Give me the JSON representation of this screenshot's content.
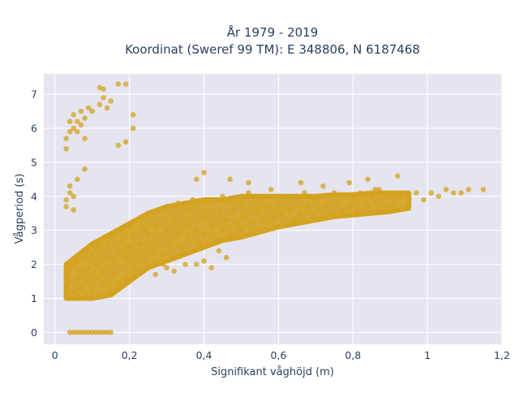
{
  "chart_data": {
    "type": "scatter",
    "title_lines": [
      "År 1979 - 2019",
      "Koordinat (Sweref 99 TM): E 348806, N 6187468"
    ],
    "xlabel": "Signifikant våghöjd (m)",
    "ylabel": "Vågperiod (s)",
    "xlim": [
      -0.03,
      1.2
    ],
    "ylim": [
      -0.35,
      7.6
    ],
    "grid": true,
    "legend": "none",
    "x_ticks": [
      {
        "value": 0,
        "label": "0"
      },
      {
        "value": 0.2,
        "label": "0,2"
      },
      {
        "value": 0.4,
        "label": "0,4"
      },
      {
        "value": 0.6,
        "label": "0,6"
      },
      {
        "value": 0.8,
        "label": "0,8"
      },
      {
        "value": 1.0,
        "label": "1"
      },
      {
        "value": 1.2,
        "label": "1,2"
      }
    ],
    "y_ticks": [
      {
        "value": 0,
        "label": "0"
      },
      {
        "value": 1,
        "label": "1"
      },
      {
        "value": 2,
        "label": "2"
      },
      {
        "value": 3,
        "label": "3"
      },
      {
        "value": 4,
        "label": "4"
      },
      {
        "value": 5,
        "label": "5"
      },
      {
        "value": 6,
        "label": "6"
      },
      {
        "value": 7,
        "label": "7"
      }
    ],
    "marker_color": "#d4a21f",
    "plot_bg": "#e5e5f0",
    "points": [
      [
        0.04,
        0
      ],
      [
        0.05,
        0
      ],
      [
        0.06,
        0
      ],
      [
        0.07,
        0
      ],
      [
        0.08,
        0
      ],
      [
        0.09,
        0
      ],
      [
        0.1,
        0
      ],
      [
        0.11,
        0
      ],
      [
        0.12,
        0
      ],
      [
        0.13,
        0
      ],
      [
        0.14,
        0
      ],
      [
        0.15,
        0
      ],
      [
        0.03,
        3.7
      ],
      [
        0.03,
        3.9
      ],
      [
        0.04,
        4.1
      ],
      [
        0.04,
        4.3
      ],
      [
        0.05,
        4.0
      ],
      [
        0.05,
        3.6
      ],
      [
        0.06,
        4.5
      ],
      [
        0.08,
        4.8
      ],
      [
        0.03,
        5.4
      ],
      [
        0.03,
        5.7
      ],
      [
        0.04,
        5.9
      ],
      [
        0.04,
        6.2
      ],
      [
        0.05,
        6.0
      ],
      [
        0.05,
        6.4
      ],
      [
        0.06,
        6.2
      ],
      [
        0.06,
        5.9
      ],
      [
        0.07,
        6.5
      ],
      [
        0.07,
        6.1
      ],
      [
        0.08,
        6.3
      ],
      [
        0.09,
        6.6
      ],
      [
        0.1,
        6.5
      ],
      [
        0.12,
        6.7
      ],
      [
        0.13,
        6.9
      ],
      [
        0.14,
        6.6
      ],
      [
        0.15,
        6.8
      ],
      [
        0.08,
        5.7
      ],
      [
        0.12,
        7.2
      ],
      [
        0.13,
        7.15
      ],
      [
        0.17,
        7.3
      ],
      [
        0.19,
        7.3
      ],
      [
        0.21,
        6.4
      ],
      [
        0.21,
        6.0
      ],
      [
        0.19,
        5.6
      ],
      [
        0.17,
        5.5
      ],
      [
        0.03,
        1.3
      ],
      [
        0.03,
        1.7
      ],
      [
        0.04,
        1.9
      ],
      [
        0.04,
        1.5
      ],
      [
        0.05,
        2.0
      ],
      [
        0.05,
        1.2
      ],
      [
        0.06,
        1.1
      ],
      [
        0.06,
        1.6
      ],
      [
        0.06,
        2.1
      ],
      [
        0.07,
        1.8
      ],
      [
        0.07,
        1.3
      ],
      [
        0.08,
        2.2
      ],
      [
        0.08,
        1.1
      ],
      [
        0.09,
        1.5
      ],
      [
        0.09,
        1.9
      ],
      [
        0.1,
        2.3
      ],
      [
        0.1,
        1.2
      ],
      [
        0.11,
        1.6
      ],
      [
        0.11,
        2.0
      ],
      [
        0.12,
        2.5
      ],
      [
        0.12,
        1.1
      ],
      [
        0.13,
        1.4
      ],
      [
        0.13,
        1.8
      ],
      [
        0.14,
        2.2
      ],
      [
        0.14,
        2.6
      ],
      [
        0.15,
        1.2
      ],
      [
        0.15,
        2.8
      ],
      [
        0.16,
        1.7
      ],
      [
        0.16,
        2.1
      ],
      [
        0.17,
        2.4
      ],
      [
        0.17,
        1.4
      ],
      [
        0.18,
        2.7
      ],
      [
        0.18,
        3.0
      ],
      [
        0.19,
        2.2
      ],
      [
        0.19,
        1.6
      ],
      [
        0.2,
        2.5
      ],
      [
        0.2,
        3.1
      ],
      [
        0.21,
        2.0
      ],
      [
        0.21,
        2.8
      ],
      [
        0.22,
        3.3
      ],
      [
        0.22,
        1.8
      ],
      [
        0.23,
        2.6
      ],
      [
        0.24,
        3.0
      ],
      [
        0.24,
        2.2
      ],
      [
        0.25,
        2.9
      ],
      [
        0.25,
        3.5
      ],
      [
        0.26,
        2.4
      ],
      [
        0.27,
        3.1
      ],
      [
        0.28,
        2.7
      ],
      [
        0.28,
        3.6
      ],
      [
        0.29,
        2.3
      ],
      [
        0.3,
        3.0
      ],
      [
        0.3,
        3.7
      ],
      [
        0.31,
        2.6
      ],
      [
        0.32,
        3.3
      ],
      [
        0.33,
        2.9
      ],
      [
        0.33,
        3.8
      ],
      [
        0.34,
        2.5
      ],
      [
        0.35,
        3.2
      ],
      [
        0.36,
        2.8
      ],
      [
        0.36,
        3.6
      ],
      [
        0.37,
        3.9
      ],
      [
        0.38,
        3.0
      ],
      [
        0.39,
        2.6
      ],
      [
        0.4,
        3.4
      ],
      [
        0.4,
        2.9
      ],
      [
        0.41,
        3.8
      ],
      [
        0.42,
        3.1
      ],
      [
        0.43,
        2.7
      ],
      [
        0.44,
        3.5
      ],
      [
        0.45,
        3.0
      ],
      [
        0.45,
        4.0
      ],
      [
        0.46,
        3.3
      ],
      [
        0.47,
        2.9
      ],
      [
        0.48,
        3.6
      ],
      [
        0.49,
        3.2
      ],
      [
        0.5,
        3.8
      ],
      [
        0.5,
        3.0
      ],
      [
        0.51,
        3.4
      ],
      [
        0.52,
        4.1
      ],
      [
        0.53,
        3.2
      ],
      [
        0.54,
        3.6
      ],
      [
        0.55,
        3.9
      ],
      [
        0.56,
        3.3
      ],
      [
        0.57,
        3.7
      ],
      [
        0.58,
        4.2
      ],
      [
        0.59,
        3.4
      ],
      [
        0.6,
        3.8
      ],
      [
        0.61,
        3.5
      ],
      [
        0.62,
        4.0
      ],
      [
        0.63,
        3.6
      ],
      [
        0.64,
        3.3
      ],
      [
        0.65,
        3.9
      ],
      [
        0.66,
        3.5
      ],
      [
        0.67,
        4.1
      ],
      [
        0.68,
        3.7
      ],
      [
        0.69,
        3.4
      ],
      [
        0.7,
        3.9
      ],
      [
        0.71,
        3.6
      ],
      [
        0.72,
        4.0
      ],
      [
        0.73,
        3.7
      ],
      [
        0.74,
        3.5
      ],
      [
        0.75,
        4.1
      ],
      [
        0.76,
        3.8
      ],
      [
        0.77,
        3.6
      ],
      [
        0.78,
        4.0
      ],
      [
        0.79,
        3.7
      ],
      [
        0.8,
        3.9
      ],
      [
        0.81,
        3.6
      ],
      [
        0.82,
        4.1
      ],
      [
        0.83,
        3.8
      ],
      [
        0.84,
        3.7
      ],
      [
        0.85,
        4.0
      ],
      [
        0.86,
        3.8
      ],
      [
        0.87,
        4.2
      ],
      [
        0.88,
        3.9
      ],
      [
        0.89,
        3.7
      ],
      [
        0.9,
        4.0
      ],
      [
        0.91,
        3.8
      ],
      [
        0.92,
        4.6
      ],
      [
        0.93,
        4.0
      ],
      [
        0.95,
        3.9
      ],
      [
        0.97,
        4.1
      ],
      [
        0.99,
        3.9
      ],
      [
        1.01,
        4.1
      ],
      [
        1.03,
        4.0
      ],
      [
        1.05,
        4.2
      ],
      [
        1.07,
        4.1
      ],
      [
        1.09,
        4.1
      ],
      [
        1.11,
        4.2
      ],
      [
        1.15,
        4.2
      ],
      [
        0.27,
        1.7
      ],
      [
        0.3,
        1.9
      ],
      [
        0.32,
        1.8
      ],
      [
        0.35,
        2.0
      ],
      [
        0.38,
        2.0
      ],
      [
        0.4,
        2.1
      ],
      [
        0.42,
        1.9
      ],
      [
        0.44,
        2.4
      ],
      [
        0.46,
        2.2
      ],
      [
        0.29,
        2.0
      ],
      [
        0.38,
        4.5
      ],
      [
        0.4,
        4.7
      ],
      [
        0.47,
        4.5
      ],
      [
        0.52,
        4.4
      ],
      [
        0.66,
        4.4
      ],
      [
        0.72,
        4.3
      ],
      [
        0.79,
        4.4
      ],
      [
        0.84,
        4.5
      ],
      [
        0.86,
        4.2
      ]
    ],
    "density_band": [
      [
        0.03,
        1.0,
        2.0
      ],
      [
        0.1,
        1.0,
        2.6
      ],
      [
        0.15,
        1.1,
        2.9
      ],
      [
        0.2,
        1.5,
        3.2
      ],
      [
        0.25,
        1.9,
        3.5
      ],
      [
        0.3,
        2.1,
        3.7
      ],
      [
        0.35,
        2.3,
        3.8
      ],
      [
        0.4,
        2.5,
        3.9
      ],
      [
        0.45,
        2.7,
        3.9
      ],
      [
        0.5,
        2.8,
        4.0
      ],
      [
        0.55,
        2.95,
        4.0
      ],
      [
        0.6,
        3.1,
        4.0
      ],
      [
        0.65,
        3.2,
        4.0
      ],
      [
        0.7,
        3.3,
        4.0
      ],
      [
        0.75,
        3.4,
        4.05
      ],
      [
        0.8,
        3.45,
        4.05
      ],
      [
        0.85,
        3.5,
        4.1
      ],
      [
        0.9,
        3.55,
        4.1
      ],
      [
        0.95,
        3.65,
        4.1
      ]
    ]
  }
}
